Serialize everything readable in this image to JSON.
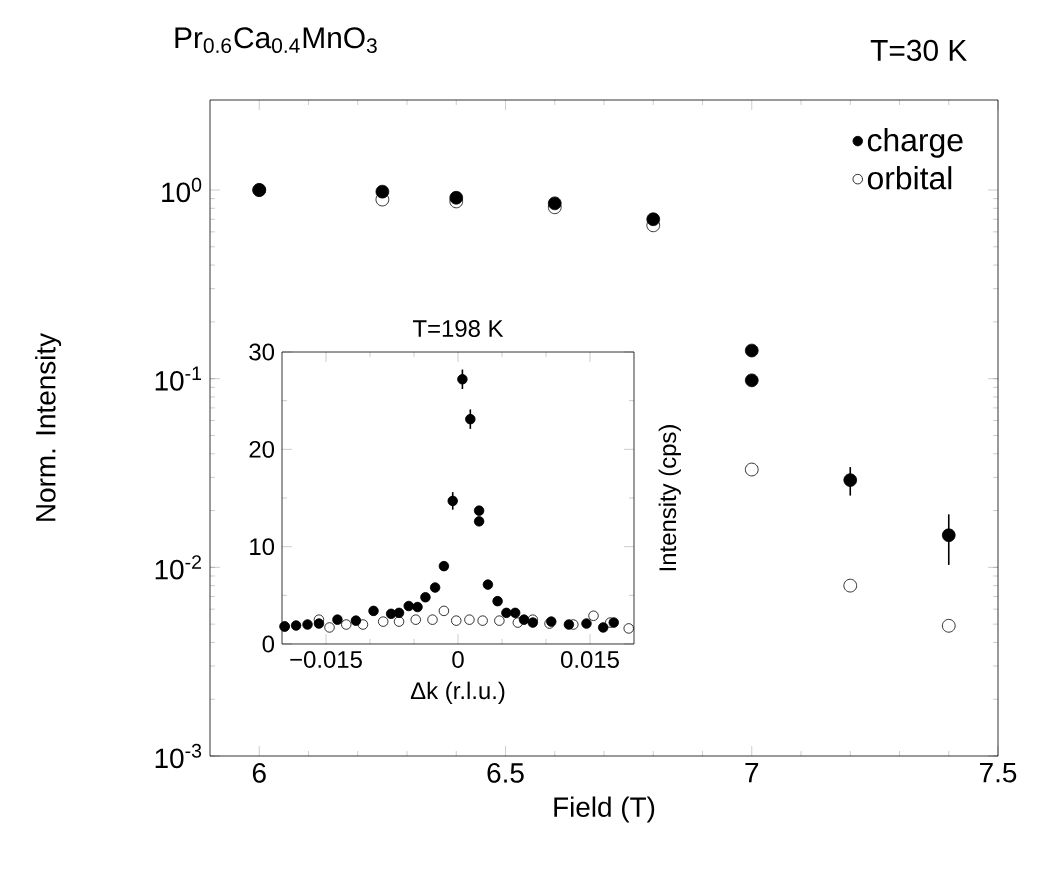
{
  "chart_data": [
    {
      "type": "scatter",
      "title": "Pr$_{0.6}$Ca$_{0.4}$MnO$_{3}$",
      "annotations": [
        "T=30 K"
      ],
      "xlabel": "Field (T)",
      "ylabel": "Norm. Intensity",
      "log": "y",
      "xlim": [
        5.9,
        7.5
      ],
      "ylim": [
        0.001,
        3
      ],
      "xticks": [
        6,
        6.5,
        7,
        7.5
      ],
      "yticks": [
        {
          "value": 0.001,
          "label": "10$^{-3}$"
        },
        {
          "value": 0.01,
          "label": "10$^{-2}$"
        },
        {
          "value": 0.1,
          "label": "10$^{-1}$"
        },
        {
          "value": 1,
          "label": "10$^{0}$"
        }
      ],
      "legend": "top right",
      "marker": "circle",
      "grid": false,
      "series": [
        {
          "name": "charge",
          "color": "#000000",
          "x": [
            6.0,
            6.25,
            6.4,
            6.6,
            6.8,
            7.0,
            7.0,
            7.2,
            7.4
          ],
          "values": [
            1.0,
            0.98,
            0.91,
            0.85,
            0.7,
            0.141,
            0.098,
            0.029,
            0.0148
          ],
          "errors": [
            null,
            null,
            null,
            null,
            null,
            null,
            null,
            [
              0.024,
              0.034
            ],
            [
              0.0103,
              0.0191
            ]
          ]
        },
        {
          "name": "orbital",
          "color": "#000000",
          "marker": "open circle",
          "x": [
            6.0,
            6.25,
            6.4,
            6.6,
            6.8,
            7.0,
            7.2,
            7.4
          ],
          "values": [
            1.0,
            0.89,
            0.87,
            0.81,
            0.65,
            0.033,
            0.008,
            0.0049
          ]
        }
      ]
    },
    {
      "type": "scatter",
      "title": "T=198 K",
      "xlabel": "Δk (r.l.u.)",
      "ylabel": "Intensity (cps)",
      "xlim": [
        -0.02,
        0.02
      ],
      "ylim": [
        0,
        30
      ],
      "xticks": [
        {
          "value": -0.015,
          "label": "−0.015"
        },
        0,
        0.015
      ],
      "yticks": [
        0,
        10,
        20,
        30
      ],
      "marker": "circle",
      "grid": false,
      "series": [
        {
          "color": "#000000",
          "x": [
            -0.0197,
            -0.0184,
            -0.0171,
            -0.0158,
            -0.0137,
            -0.0116,
            -0.0096,
            -0.0076,
            -0.0067,
            -0.0056,
            -0.0046,
            -0.0037,
            -0.0026,
            -0.0016,
            -0.0006,
            0.0005,
            0.0014,
            0.0024,
            0.0024,
            0.0034,
            0.0045,
            0.0055,
            0.0065,
            0.0075,
            0.0085,
            0.0106,
            0.0126,
            0.0146,
            0.0165,
            0.0177
          ],
          "values": [
            1.8,
            1.9,
            2.0,
            2.1,
            2.5,
            2.4,
            3.4,
            3.1,
            3.2,
            3.9,
            3.8,
            4.8,
            5.8,
            8.0,
            14.7,
            27.2,
            23.1,
            13.7,
            12.6,
            6.1,
            4.4,
            3.2,
            3.2,
            2.5,
            2.2,
            2.3,
            2.0,
            2.1,
            1.7,
            2.2
          ],
          "errors": [
            null,
            null,
            null,
            null,
            null,
            null,
            null,
            null,
            null,
            null,
            null,
            null,
            null,
            null,
            0.9,
            1.0,
            1.0,
            null,
            null,
            null,
            null,
            null,
            null,
            null,
            null,
            null,
            null,
            null,
            null,
            null
          ]
        },
        {
          "color": "#000000",
          "marker": "open circle",
          "x": [
            -0.0197,
            -0.0177,
            -0.0158,
            -0.0146,
            -0.0127,
            -0.0108,
            -0.0085,
            -0.0067,
            -0.0048,
            -0.0029,
            -0.0016,
            -0.0002,
            0.0013,
            0.0028,
            0.0047,
            0.0068,
            0.0085,
            0.0104,
            0.0131,
            0.0154,
            0.0173,
            0.0194
          ],
          "values": [
            1.8,
            null,
            2.5,
            1.7,
            2.0,
            2.0,
            2.3,
            2.3,
            2.5,
            2.5,
            3.4,
            2.4,
            2.5,
            2.4,
            2.4,
            2.2,
            2.5,
            2.1,
            2.0,
            2.9,
            2.2,
            1.6
          ]
        }
      ]
    }
  ]
}
